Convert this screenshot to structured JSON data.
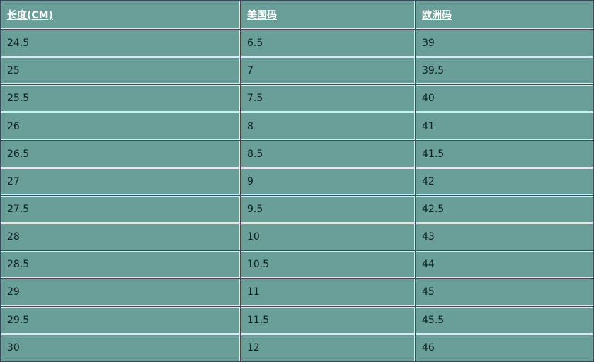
{
  "table": {
    "headers": [
      "长度(CM)",
      "美国码",
      "欧洲码"
    ],
    "rows": [
      [
        "24.5",
        "6.5",
        "39"
      ],
      [
        "25",
        "7",
        "39.5"
      ],
      [
        "25.5",
        "7.5",
        "40"
      ],
      [
        "26",
        "8",
        "41"
      ],
      [
        "26.5",
        "8.5",
        "41.5"
      ],
      [
        "27",
        "9",
        "42"
      ],
      [
        "27.5",
        "9.5",
        "42.5"
      ],
      [
        "28",
        "10",
        "43"
      ],
      [
        "28.5",
        "10.5",
        "44"
      ],
      [
        "29",
        "11",
        "45"
      ],
      [
        "29.5",
        "11.5",
        "45.5"
      ],
      [
        "30",
        "12",
        "46"
      ]
    ]
  },
  "colors": {
    "cell_bg": "#6a9e98",
    "outer_border": "#2f4f63",
    "header_text": "#ffffff"
  }
}
